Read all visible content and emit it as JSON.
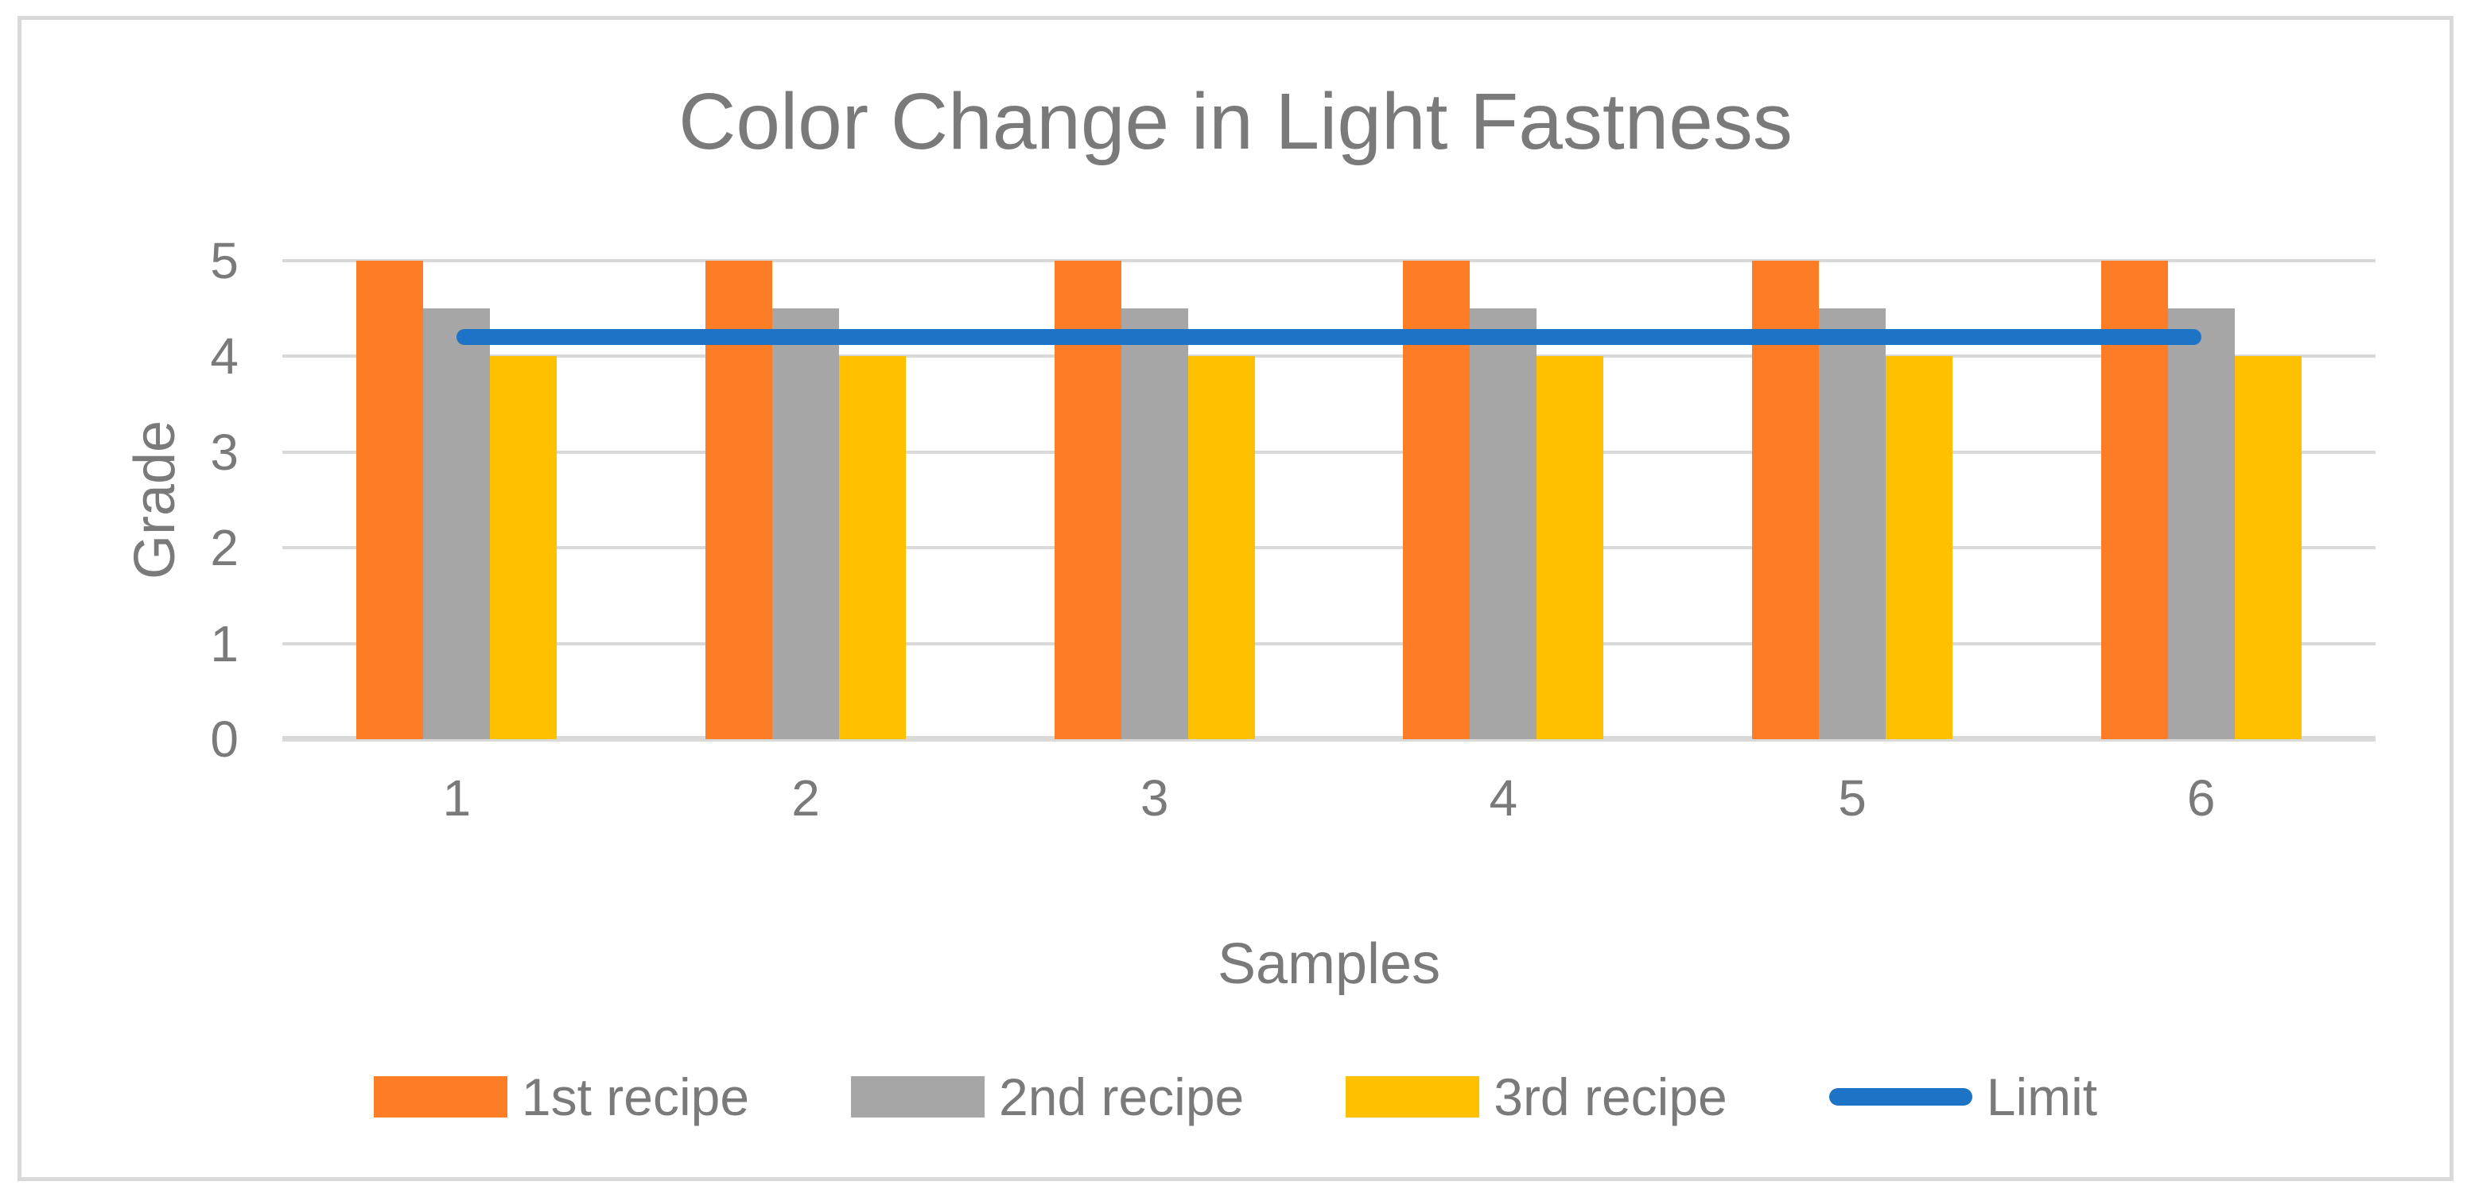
{
  "chart_data": {
    "type": "bar",
    "title": "Color Change in Light Fastness",
    "xlabel": "Samples",
    "ylabel": "Grade",
    "categories": [
      "1",
      "2",
      "3",
      "4",
      "5",
      "6"
    ],
    "series": [
      {
        "name": "1st recipe",
        "kind": "bar",
        "color": "#FC7D26",
        "values": [
          5,
          5,
          5,
          5,
          5,
          5
        ]
      },
      {
        "name": "2nd recipe",
        "kind": "bar",
        "color": "#A6A6A6",
        "values": [
          4.5,
          4.5,
          4.5,
          4.5,
          4.5,
          4.5
        ]
      },
      {
        "name": "3rd recipe",
        "kind": "bar",
        "color": "#FFC000",
        "values": [
          4,
          4,
          4,
          4,
          4,
          4
        ]
      },
      {
        "name": "Limit",
        "kind": "line",
        "color": "#1D73C6",
        "values": [
          4.2,
          4.2,
          4.2,
          4.2,
          4.2,
          4.2
        ]
      }
    ],
    "ylim": [
      0,
      5
    ],
    "yticks": [
      0,
      1,
      2,
      3,
      4,
      5
    ],
    "grid": true,
    "legend_position": "bottom"
  },
  "colors": {
    "gridline": "#D9D9D9",
    "frame_border": "#D9D9D9",
    "text": "#7A7A7A",
    "background": "#FFFFFF"
  }
}
